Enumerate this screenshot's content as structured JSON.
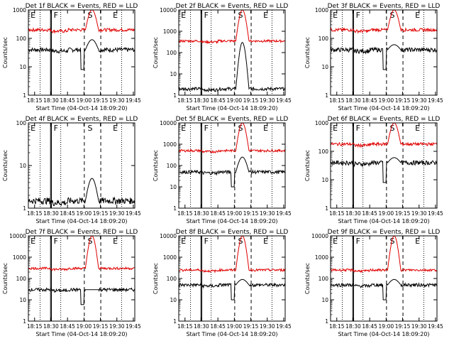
{
  "chart_data": [
    {
      "type": "line",
      "title": "Det 1f BLACK = Events, RED = LLD",
      "xlabel": "Start Time (04-Oct-14 18:09:20)",
      "ylabel": "Counts/sec",
      "yscale": "log",
      "ylim": [
        1,
        1000
      ],
      "y_ticks": [
        "1",
        "10",
        "100",
        "1000"
      ],
      "x_ticks": [
        "18:15",
        "18:30",
        "18:45",
        "19:00",
        "19:15",
        "19:30",
        "19:45"
      ],
      "region_labels": [
        "E",
        "F",
        "S",
        "E"
      ],
      "series": [
        {
          "name": "Events",
          "color": "#000000",
          "level": 40,
          "peak": 90
        },
        {
          "name": "LLD",
          "color": "#e00000",
          "level": 200,
          "peak": 1000
        }
      ]
    },
    {
      "type": "line",
      "title": "Det 2f BLACK = Events, RED = LLD",
      "xlabel": "Start Time (04-Oct-14 18:09:20)",
      "ylabel": "Counts/sec",
      "yscale": "log",
      "ylim": [
        1,
        10000
      ],
      "y_ticks": [
        "1",
        "10",
        "100",
        "1000",
        "10000"
      ],
      "x_ticks": [
        "18:15",
        "18:30",
        "18:45",
        "19:00",
        "19:15",
        "19:30",
        "19:45"
      ],
      "region_labels": [
        "E",
        "F",
        "S",
        "E"
      ],
      "series": [
        {
          "name": "Events",
          "color": "#000000",
          "level": 2,
          "peak": 300
        },
        {
          "name": "LLD",
          "color": "#e00000",
          "level": 350,
          "peak": 10000
        }
      ]
    },
    {
      "type": "line",
      "title": "Det 3f BLACK = Events, RED = LLD",
      "xlabel": "Start Time (04-Oct-14 18:09:20)",
      "ylabel": "Counts/sec",
      "yscale": "log",
      "ylim": [
        1,
        1000
      ],
      "y_ticks": [
        "1",
        "10",
        "100",
        "1000"
      ],
      "x_ticks": [
        "18:15",
        "18:30",
        "18:45",
        "19:00",
        "19:15",
        "19:30",
        "19:45"
      ],
      "region_labels": [
        "E",
        "F",
        "S",
        "E"
      ],
      "series": [
        {
          "name": "Events",
          "color": "#000000",
          "level": 40,
          "peak": 60
        },
        {
          "name": "LLD",
          "color": "#e00000",
          "level": 200,
          "peak": 1000
        }
      ]
    },
    {
      "type": "line",
      "title": "Det 4f BLACK = Events, RED = LLD",
      "xlabel": "Start Time (04-Oct-14 18:09:20)",
      "ylabel": "Counts/sec",
      "yscale": "log",
      "ylim": [
        1,
        100
      ],
      "y_ticks": [
        "1",
        "10",
        "100"
      ],
      "x_ticks": [
        "18:15",
        "18:30",
        "18:45",
        "19:00",
        "19:15",
        "19:30",
        "19:45"
      ],
      "region_labels": [
        "E",
        "F",
        "S",
        "E"
      ],
      "series": [
        {
          "name": "Events",
          "color": "#000000",
          "level": 1.5,
          "peak": 5
        }
      ]
    },
    {
      "type": "line",
      "title": "Det 5f BLACK = Events, RED = LLD",
      "xlabel": "Start Time (04-Oct-14 18:09:20)",
      "ylabel": "Counts/sec",
      "yscale": "log",
      "ylim": [
        1,
        10000
      ],
      "y_ticks": [
        "1",
        "10",
        "100",
        "1000",
        "10000"
      ],
      "x_ticks": [
        "18:15",
        "18:30",
        "18:45",
        "19:00",
        "19:15",
        "19:30",
        "19:45"
      ],
      "region_labels": [
        "E",
        "F",
        "S",
        "E"
      ],
      "series": [
        {
          "name": "Events",
          "color": "#000000",
          "level": 50,
          "peak": 250
        },
        {
          "name": "LLD",
          "color": "#e00000",
          "level": 500,
          "peak": 10000
        }
      ]
    },
    {
      "type": "line",
      "title": "Det 6f BLACK = Events, RED = LLD",
      "xlabel": "Start Time (04-Oct-14 18:09:20)",
      "ylabel": "Counts/sec",
      "yscale": "log",
      "ylim": [
        1,
        1000
      ],
      "y_ticks": [
        "1",
        "10",
        "100",
        "1000"
      ],
      "x_ticks": [
        "18:15",
        "18:30",
        "18:45",
        "19:00",
        "19:15",
        "19:30",
        "19:45"
      ],
      "region_labels": [
        "E",
        "F",
        "S",
        "E"
      ],
      "series": [
        {
          "name": "Events",
          "color": "#000000",
          "level": 40,
          "peak": 60
        },
        {
          "name": "LLD",
          "color": "#e00000",
          "level": 180,
          "peak": 1000
        }
      ]
    },
    {
      "type": "line",
      "title": "Det 7f BLACK = Events, RED = LLD",
      "xlabel": "Start Time (04-Oct-14 18:09:20)",
      "ylabel": "Counts/sec",
      "yscale": "log",
      "ylim": [
        1,
        10000
      ],
      "y_ticks": [
        "1",
        "10",
        "100",
        "1000",
        "10000"
      ],
      "x_ticks": [
        "18:15",
        "18:30",
        "18:45",
        "19:00",
        "19:15",
        "19:30",
        "19:45"
      ],
      "region_labels": [
        "E",
        "F",
        "S",
        "E"
      ],
      "series": [
        {
          "name": "Events",
          "color": "#000000",
          "level": 30,
          "peak": 30
        },
        {
          "name": "LLD",
          "color": "#e00000",
          "level": 300,
          "peak": 10000
        }
      ]
    },
    {
      "type": "line",
      "title": "Det 8f BLACK = Events, RED = LLD",
      "xlabel": "Start Time (04-Oct-14 18:09:20)",
      "ylabel": "Counts/sec",
      "yscale": "log",
      "ylim": [
        1,
        10000
      ],
      "y_ticks": [
        "1",
        "10",
        "100",
        "1000",
        "10000"
      ],
      "x_ticks": [
        "18:15",
        "18:30",
        "18:45",
        "19:00",
        "19:15",
        "19:30",
        "19:45"
      ],
      "region_labels": [
        "E",
        "F",
        "S",
        "E"
      ],
      "series": [
        {
          "name": "Events",
          "color": "#000000",
          "level": 50,
          "peak": 90
        },
        {
          "name": "LLD",
          "color": "#e00000",
          "level": 250,
          "peak": 10000
        }
      ]
    },
    {
      "type": "line",
      "title": "Det 9f BLACK = Events, RED = LLD",
      "xlabel": "Start Time (04-Oct-14 18:09:20)",
      "ylabel": "Counts/sec",
      "yscale": "log",
      "ylim": [
        1,
        10000
      ],
      "y_ticks": [
        "1",
        "10",
        "100",
        "1000",
        "10000"
      ],
      "x_ticks": [
        "18:15",
        "18:30",
        "18:45",
        "19:00",
        "19:15",
        "19:30",
        "19:45"
      ],
      "region_labels": [
        "E",
        "F",
        "S",
        "E"
      ],
      "series": [
        {
          "name": "Events",
          "color": "#000000",
          "level": 50,
          "peak": 90
        },
        {
          "name": "LLD",
          "color": "#e00000",
          "level": 250,
          "peak": 10000
        }
      ]
    }
  ]
}
